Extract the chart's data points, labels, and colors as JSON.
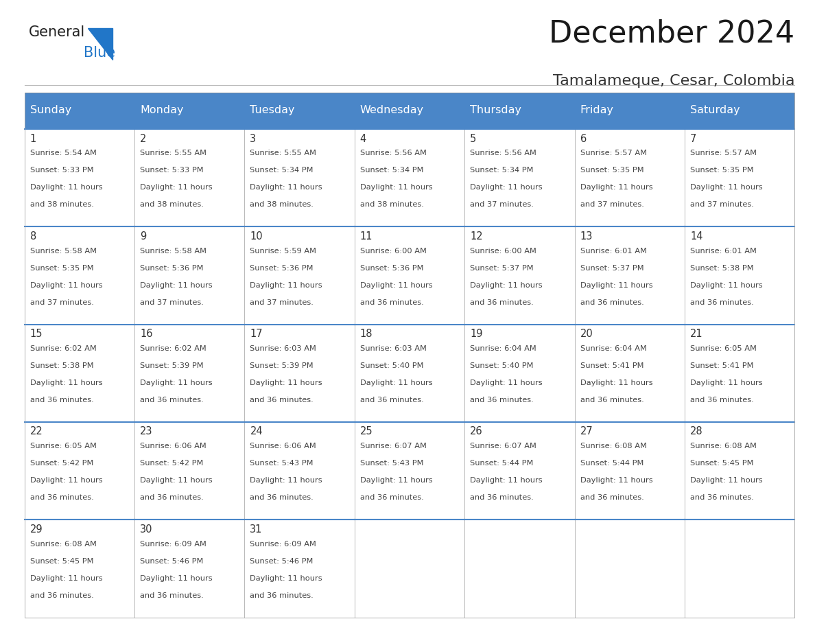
{
  "title": "December 2024",
  "subtitle": "Tamalameque, Cesar, Colombia",
  "days_of_week": [
    "Sunday",
    "Monday",
    "Tuesday",
    "Wednesday",
    "Thursday",
    "Friday",
    "Saturday"
  ],
  "header_bg": "#4a86c8",
  "header_text": "#ffffff",
  "cell_bg": "#ffffff",
  "cell_border": "#4a86c8",
  "day_num_color": "#333333",
  "text_color": "#444444",
  "logo_general_color": "#222222",
  "logo_blue_color": "#2176c8",
  "weeks": [
    [
      {
        "day": 1,
        "sunrise": "5:54 AM",
        "sunset": "5:33 PM",
        "daylight_hours": 11,
        "daylight_minutes": 38
      },
      {
        "day": 2,
        "sunrise": "5:55 AM",
        "sunset": "5:33 PM",
        "daylight_hours": 11,
        "daylight_minutes": 38
      },
      {
        "day": 3,
        "sunrise": "5:55 AM",
        "sunset": "5:34 PM",
        "daylight_hours": 11,
        "daylight_minutes": 38
      },
      {
        "day": 4,
        "sunrise": "5:56 AM",
        "sunset": "5:34 PM",
        "daylight_hours": 11,
        "daylight_minutes": 38
      },
      {
        "day": 5,
        "sunrise": "5:56 AM",
        "sunset": "5:34 PM",
        "daylight_hours": 11,
        "daylight_minutes": 37
      },
      {
        "day": 6,
        "sunrise": "5:57 AM",
        "sunset": "5:35 PM",
        "daylight_hours": 11,
        "daylight_minutes": 37
      },
      {
        "day": 7,
        "sunrise": "5:57 AM",
        "sunset": "5:35 PM",
        "daylight_hours": 11,
        "daylight_minutes": 37
      }
    ],
    [
      {
        "day": 8,
        "sunrise": "5:58 AM",
        "sunset": "5:35 PM",
        "daylight_hours": 11,
        "daylight_minutes": 37
      },
      {
        "day": 9,
        "sunrise": "5:58 AM",
        "sunset": "5:36 PM",
        "daylight_hours": 11,
        "daylight_minutes": 37
      },
      {
        "day": 10,
        "sunrise": "5:59 AM",
        "sunset": "5:36 PM",
        "daylight_hours": 11,
        "daylight_minutes": 37
      },
      {
        "day": 11,
        "sunrise": "6:00 AM",
        "sunset": "5:36 PM",
        "daylight_hours": 11,
        "daylight_minutes": 36
      },
      {
        "day": 12,
        "sunrise": "6:00 AM",
        "sunset": "5:37 PM",
        "daylight_hours": 11,
        "daylight_minutes": 36
      },
      {
        "day": 13,
        "sunrise": "6:01 AM",
        "sunset": "5:37 PM",
        "daylight_hours": 11,
        "daylight_minutes": 36
      },
      {
        "day": 14,
        "sunrise": "6:01 AM",
        "sunset": "5:38 PM",
        "daylight_hours": 11,
        "daylight_minutes": 36
      }
    ],
    [
      {
        "day": 15,
        "sunrise": "6:02 AM",
        "sunset": "5:38 PM",
        "daylight_hours": 11,
        "daylight_minutes": 36
      },
      {
        "day": 16,
        "sunrise": "6:02 AM",
        "sunset": "5:39 PM",
        "daylight_hours": 11,
        "daylight_minutes": 36
      },
      {
        "day": 17,
        "sunrise": "6:03 AM",
        "sunset": "5:39 PM",
        "daylight_hours": 11,
        "daylight_minutes": 36
      },
      {
        "day": 18,
        "sunrise": "6:03 AM",
        "sunset": "5:40 PM",
        "daylight_hours": 11,
        "daylight_minutes": 36
      },
      {
        "day": 19,
        "sunrise": "6:04 AM",
        "sunset": "5:40 PM",
        "daylight_hours": 11,
        "daylight_minutes": 36
      },
      {
        "day": 20,
        "sunrise": "6:04 AM",
        "sunset": "5:41 PM",
        "daylight_hours": 11,
        "daylight_minutes": 36
      },
      {
        "day": 21,
        "sunrise": "6:05 AM",
        "sunset": "5:41 PM",
        "daylight_hours": 11,
        "daylight_minutes": 36
      }
    ],
    [
      {
        "day": 22,
        "sunrise": "6:05 AM",
        "sunset": "5:42 PM",
        "daylight_hours": 11,
        "daylight_minutes": 36
      },
      {
        "day": 23,
        "sunrise": "6:06 AM",
        "sunset": "5:42 PM",
        "daylight_hours": 11,
        "daylight_minutes": 36
      },
      {
        "day": 24,
        "sunrise": "6:06 AM",
        "sunset": "5:43 PM",
        "daylight_hours": 11,
        "daylight_minutes": 36
      },
      {
        "day": 25,
        "sunrise": "6:07 AM",
        "sunset": "5:43 PM",
        "daylight_hours": 11,
        "daylight_minutes": 36
      },
      {
        "day": 26,
        "sunrise": "6:07 AM",
        "sunset": "5:44 PM",
        "daylight_hours": 11,
        "daylight_minutes": 36
      },
      {
        "day": 27,
        "sunrise": "6:08 AM",
        "sunset": "5:44 PM",
        "daylight_hours": 11,
        "daylight_minutes": 36
      },
      {
        "day": 28,
        "sunrise": "6:08 AM",
        "sunset": "5:45 PM",
        "daylight_hours": 11,
        "daylight_minutes": 36
      }
    ],
    [
      {
        "day": 29,
        "sunrise": "6:08 AM",
        "sunset": "5:45 PM",
        "daylight_hours": 11,
        "daylight_minutes": 36
      },
      {
        "day": 30,
        "sunrise": "6:09 AM",
        "sunset": "5:46 PM",
        "daylight_hours": 11,
        "daylight_minutes": 36
      },
      {
        "day": 31,
        "sunrise": "6:09 AM",
        "sunset": "5:46 PM",
        "daylight_hours": 11,
        "daylight_minutes": 36
      },
      null,
      null,
      null,
      null
    ]
  ]
}
